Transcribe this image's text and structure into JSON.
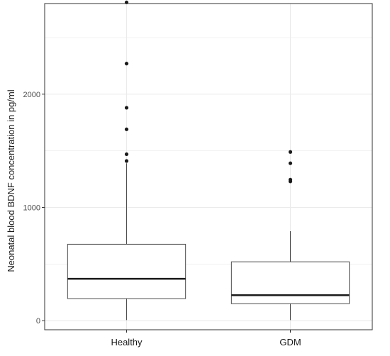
{
  "chart_data": {
    "type": "boxplot",
    "title": "",
    "xlabel": "",
    "ylabel": "Neonatal  blood BDNF concentration in pg/ml",
    "categories": [
      "Healthy",
      "GDM"
    ],
    "ylim": [
      -80,
      2800
    ],
    "y_ticks": [
      0,
      1000,
      2000
    ],
    "y_tick_labels": [
      "0",
      "1000",
      "2000"
    ],
    "grid": true,
    "legend": "none",
    "colors": {
      "box_fill": "#ffffff",
      "box_stroke": "#4d4d4d",
      "median": "#1a1a1a",
      "outlier": "#1a1a1a",
      "grid": "#ebebeb",
      "panel_border": "#333333"
    },
    "boxes": [
      {
        "category": "Healthy",
        "whisker_low": 5,
        "q1": 195,
        "median": 370,
        "q3": 675,
        "whisker_high": 1390,
        "outliers": [
          1410,
          1470,
          1690,
          1880,
          2270,
          2810
        ]
      },
      {
        "category": "GDM",
        "whisker_low": 5,
        "q1": 150,
        "median": 225,
        "q3": 520,
        "whisker_high": 790,
        "outliers": [
          1230,
          1245,
          1390,
          1490
        ]
      }
    ]
  }
}
